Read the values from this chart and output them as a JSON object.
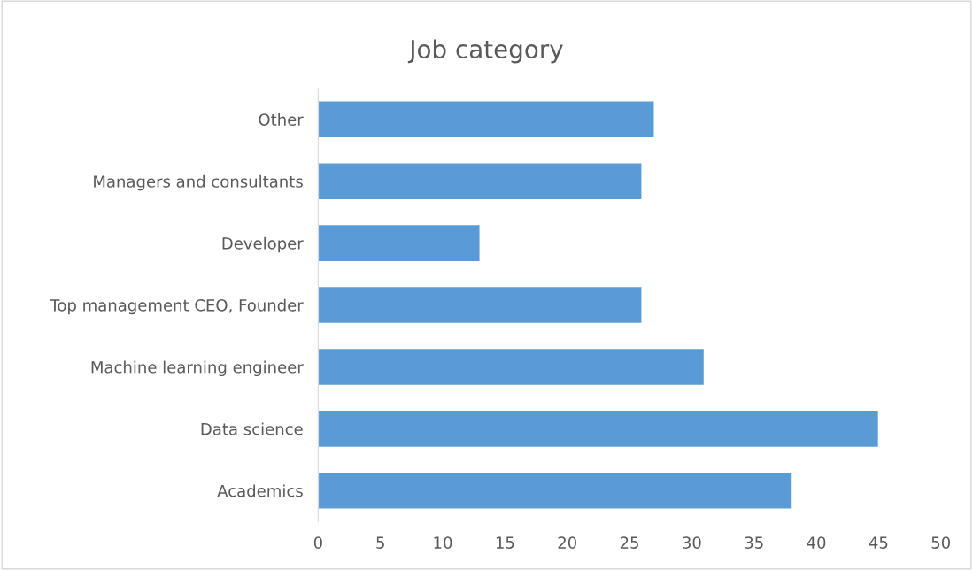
{
  "chart_data": {
    "type": "bar",
    "orientation": "horizontal",
    "title": "Job category",
    "categories": [
      "Other",
      "Managers and consultants",
      "Developer",
      "Top management CEO, Founder",
      "Machine learning engineer",
      "Data science",
      "Academics"
    ],
    "values": [
      27,
      26,
      13,
      26,
      31,
      45,
      38
    ],
    "color": "#5b9bd5",
    "xlim": [
      0,
      50
    ],
    "xticks": [
      0,
      5,
      10,
      15,
      20,
      25,
      30,
      35,
      40,
      45,
      50
    ],
    "grid": false,
    "legend": false
  }
}
